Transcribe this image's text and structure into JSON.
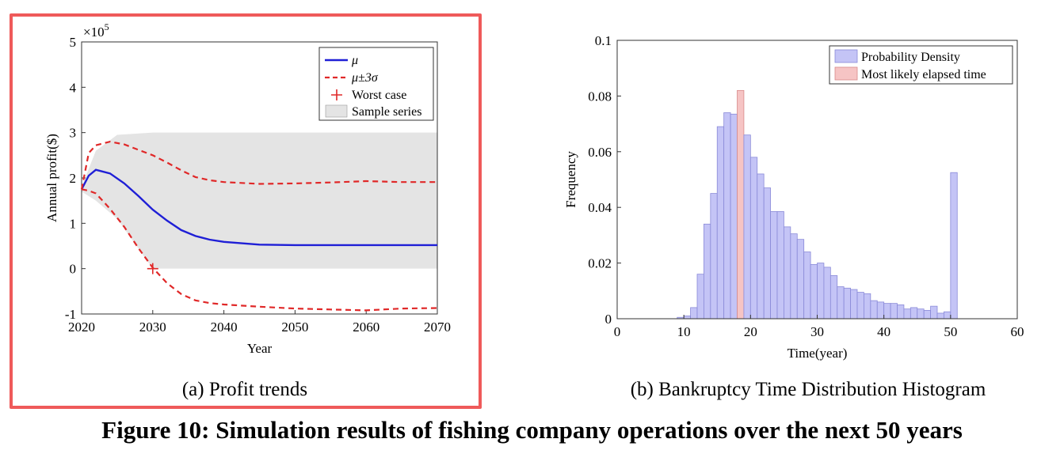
{
  "figure_title": "Figure 10: Simulation results of fishing company operations over the next 50 years",
  "colors": {
    "frame": "#ef5a5a",
    "mean_line": "#1f1fd6",
    "bound_line": "#e02828",
    "worst_marker": "#e02828",
    "sample_band": "#e4e4e4",
    "hist_bar": "#c4c4f6",
    "hist_bar_edge": "#8a8ad8",
    "highlight_bar": "#f6c4c4",
    "highlight_edge": "#d88a8a"
  },
  "chart_data": [
    {
      "panel": "a",
      "type": "line",
      "caption": "(a) Profit trends",
      "xlabel": "Year",
      "ylabel": "Annual profit($)",
      "exponent_label": "×10^5",
      "xlim": [
        2020,
        2070
      ],
      "ylim": [
        -1,
        5
      ],
      "xticks": [
        "2020",
        "2030",
        "2040",
        "2050",
        "2060",
        "2070"
      ],
      "yticks": [
        "-1",
        "0",
        "1",
        "2",
        "3",
        "4",
        "5"
      ],
      "legend_position": "top-right",
      "legend": [
        "μ",
        "μ±3σ",
        "Worst case",
        "Sample series"
      ],
      "x": [
        2020,
        2021,
        2022,
        2024,
        2026,
        2028,
        2030,
        2032,
        2034,
        2036,
        2038,
        2040,
        2045,
        2050,
        2055,
        2060,
        2065,
        2070
      ],
      "series": [
        {
          "name": "μ",
          "style": "solid",
          "values": [
            1.75,
            2.05,
            2.18,
            2.1,
            1.88,
            1.6,
            1.3,
            1.06,
            0.85,
            0.72,
            0.64,
            0.59,
            0.53,
            0.52,
            0.52,
            0.52,
            0.52,
            0.52
          ]
        },
        {
          "name": "μ±3σ",
          "style": "dashed",
          "values": [
            1.75,
            2.55,
            2.72,
            2.8,
            2.74,
            2.62,
            2.5,
            2.34,
            2.17,
            2.02,
            1.95,
            1.91,
            1.87,
            1.88,
            1.9,
            1.93,
            1.91,
            1.91
          ]
        },
        {
          "name": "μ±3σ lower",
          "style": "dashed",
          "values": [
            1.75,
            1.72,
            1.66,
            1.32,
            0.92,
            0.45,
            0.02,
            -0.32,
            -0.56,
            -0.7,
            -0.76,
            -0.79,
            -0.84,
            -0.88,
            -0.9,
            -0.92,
            -0.88,
            -0.87
          ]
        }
      ],
      "sample_band": {
        "x": [
          2020,
          2022,
          2025,
          2030,
          2040,
          2050,
          2060,
          2070
        ],
        "upper": [
          1.8,
          2.6,
          2.95,
          3.0,
          3.0,
          3.0,
          3.0,
          3.0
        ],
        "lower": [
          1.7,
          1.5,
          1.1,
          0.0,
          0.0,
          0.0,
          0.0,
          0.0
        ]
      },
      "worst_case": {
        "x": 2030,
        "y": 0.0
      }
    },
    {
      "panel": "b",
      "type": "bar",
      "caption": "(b) Bankruptcy Time Distribution Histogram",
      "xlabel": "Time(year)",
      "ylabel": "Frequency",
      "xlim": [
        0,
        60
      ],
      "ylim": [
        0,
        0.1
      ],
      "xticks": [
        "0",
        "10",
        "20",
        "30",
        "40",
        "50",
        "60"
      ],
      "yticks": [
        "0",
        "0.02",
        "0.04",
        "0.06",
        "0.08",
        "0.1"
      ],
      "legend_position": "top-right",
      "legend": [
        "Probability Density",
        "Most likely elapsed time"
      ],
      "bin_width": 1,
      "bin_starts": [
        9,
        10,
        11,
        12,
        13,
        14,
        15,
        16,
        17,
        18,
        19,
        20,
        21,
        22,
        23,
        24,
        25,
        26,
        27,
        28,
        29,
        30,
        31,
        32,
        33,
        34,
        35,
        36,
        37,
        38,
        39,
        40,
        41,
        42,
        43,
        44,
        45,
        46,
        47,
        48,
        49,
        50
      ],
      "values": [
        0.0005,
        0.001,
        0.004,
        0.016,
        0.034,
        0.045,
        0.069,
        0.074,
        0.0735,
        0.082,
        0.066,
        0.058,
        0.052,
        0.047,
        0.0385,
        0.0385,
        0.033,
        0.0305,
        0.0285,
        0.024,
        0.0195,
        0.02,
        0.0185,
        0.0155,
        0.0115,
        0.011,
        0.0105,
        0.0095,
        0.009,
        0.0065,
        0.006,
        0.0055,
        0.0055,
        0.005,
        0.0035,
        0.004,
        0.0035,
        0.003,
        0.0045,
        0.002,
        0.0025,
        0.0525
      ],
      "highlight_bin": 18
    }
  ]
}
